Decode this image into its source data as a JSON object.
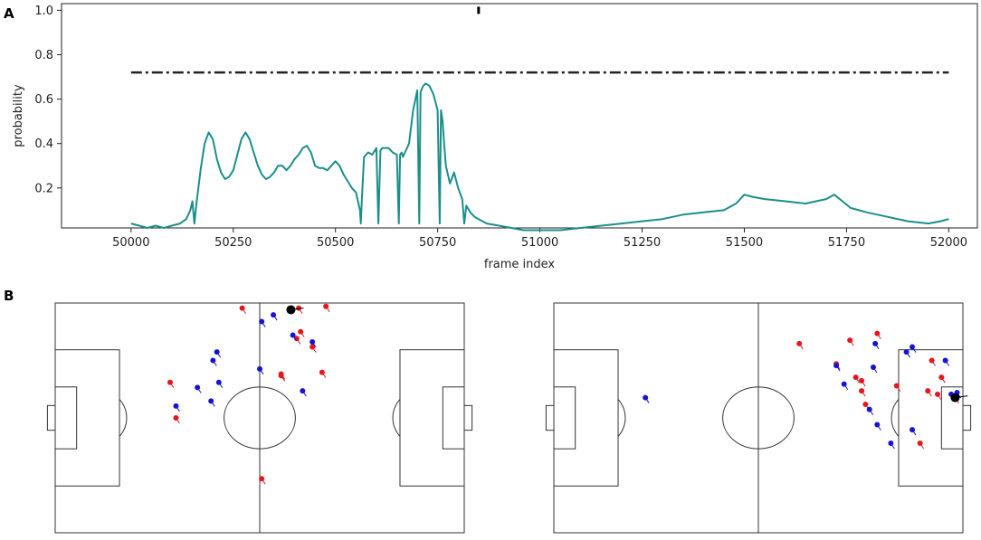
{
  "panel_a": {
    "letter": "A"
  },
  "panel_b": {
    "letter": "B"
  },
  "colors": {
    "probability_line": "#1a8f8a",
    "threshold_line": "#222222",
    "team_red": "#e8161a",
    "team_blue": "#1414d6",
    "ball": "#000000",
    "pitch_lines": "#333333"
  },
  "chart_data": [
    {
      "type": "line",
      "title": "",
      "xlabel": "frame index",
      "ylabel": "probability",
      "xlim": [
        49830,
        52070
      ],
      "ylim": [
        0.02,
        1.03
      ],
      "x_ticks": [
        50000,
        50250,
        50500,
        50750,
        51000,
        51250,
        51500,
        51750,
        52000
      ],
      "y_ticks": [
        0.2,
        0.4,
        0.6,
        0.8,
        1.0
      ],
      "y_tick_labels": [
        "0.2",
        "0.4",
        "0.6",
        "0.8",
        "1.0"
      ],
      "grid": false,
      "series": [
        {
          "style": "solid",
          "x": [
            50000,
            50020,
            50040,
            50060,
            50080,
            50100,
            50120,
            50135,
            50145,
            50150,
            50155,
            50160,
            50170,
            50180,
            50190,
            50200,
            50210,
            50220,
            50230,
            50240,
            50250,
            50260,
            50270,
            50280,
            50290,
            50300,
            50310,
            50320,
            50330,
            50340,
            50350,
            50360,
            50370,
            50380,
            50390,
            50400,
            50410,
            50420,
            50430,
            50440,
            50450,
            50460,
            50470,
            50480,
            50490,
            50500,
            50510,
            50520,
            50530,
            50540,
            50550,
            50560,
            50562,
            50565,
            50570,
            50580,
            50590,
            50600,
            50605,
            50610,
            50615,
            50620,
            50630,
            50640,
            50650,
            50655,
            50658,
            50662,
            50665,
            50670,
            50680,
            50690,
            50700,
            50705,
            50708,
            50712,
            50715,
            50720,
            50730,
            50740,
            50750,
            50755,
            50758,
            50762,
            50765,
            50770,
            50780,
            50790,
            50800,
            50810,
            50815,
            50820,
            50830,
            50840,
            50850,
            50870,
            50900,
            50930,
            50960,
            51000,
            51050,
            51100,
            51150,
            51200,
            51250,
            51300,
            51350,
            51400,
            51450,
            51480,
            51500,
            51520,
            51550,
            51600,
            51650,
            51700,
            51720,
            51740,
            51760,
            51800,
            51850,
            51900,
            51950,
            51980,
            52000
          ],
          "y": [
            0.04,
            0.03,
            0.02,
            0.03,
            0.02,
            0.03,
            0.04,
            0.06,
            0.1,
            0.14,
            0.04,
            0.13,
            0.28,
            0.4,
            0.45,
            0.42,
            0.33,
            0.27,
            0.24,
            0.25,
            0.28,
            0.35,
            0.42,
            0.45,
            0.42,
            0.36,
            0.3,
            0.26,
            0.24,
            0.25,
            0.27,
            0.3,
            0.3,
            0.28,
            0.3,
            0.33,
            0.35,
            0.38,
            0.39,
            0.36,
            0.3,
            0.29,
            0.29,
            0.28,
            0.3,
            0.32,
            0.3,
            0.26,
            0.23,
            0.2,
            0.18,
            0.1,
            0.04,
            0.17,
            0.34,
            0.36,
            0.35,
            0.38,
            0.04,
            0.37,
            0.38,
            0.38,
            0.38,
            0.36,
            0.35,
            0.04,
            0.35,
            0.36,
            0.34,
            0.36,
            0.4,
            0.55,
            0.64,
            0.04,
            0.63,
            0.65,
            0.66,
            0.67,
            0.66,
            0.62,
            0.55,
            0.04,
            0.55,
            0.5,
            0.42,
            0.3,
            0.22,
            0.27,
            0.2,
            0.15,
            0.04,
            0.12,
            0.09,
            0.07,
            0.06,
            0.04,
            0.03,
            0.02,
            0.01,
            0.01,
            0.01,
            0.02,
            0.03,
            0.04,
            0.05,
            0.06,
            0.08,
            0.09,
            0.1,
            0.13,
            0.17,
            0.16,
            0.15,
            0.14,
            0.13,
            0.15,
            0.17,
            0.14,
            0.11,
            0.09,
            0.07,
            0.05,
            0.04,
            0.05,
            0.06
          ]
        },
        {
          "style": "dash-dot",
          "x": [
            50000,
            52000
          ],
          "y": [
            0.72,
            0.72
          ]
        },
        {
          "style": "marker",
          "x": [
            50850
          ],
          "y": [
            1.0
          ]
        }
      ]
    },
    {
      "type": "scatter",
      "title": "",
      "xlim": [
        0,
        105
      ],
      "ylim": [
        0,
        68
      ],
      "series": [
        {
          "color": "red",
          "x": [
            48,
            29.5,
            31,
            62.5,
            63,
            62,
            69.5,
            58,
            66,
            68.5,
            58,
            53
          ],
          "y": [
            66.5,
            44.5,
            34,
            66.5,
            59.5,
            57.5,
            67,
            47,
            55,
            47.5,
            46.5,
            16
          ]
        },
        {
          "color": "blue",
          "x": [
            53,
            40.5,
            52.5,
            56,
            61,
            66,
            63.5,
            36.5,
            42,
            41.5,
            40,
            31
          ],
          "y": [
            62.5,
            51,
            48.5,
            64.5,
            58.5,
            56.5,
            42,
            43,
            44.5,
            53.5,
            39,
            37.5
          ]
        },
        {
          "color": "ball",
          "x": [
            60.5
          ],
          "y": [
            66
          ]
        }
      ]
    },
    {
      "type": "scatter",
      "title": "",
      "xlim": [
        0,
        105
      ],
      "ylim": [
        0,
        68
      ],
      "series": [
        {
          "color": "red",
          "x": [
            79,
            63,
            72.5,
            76,
            83,
            80,
            94,
            97,
            96,
            99.5,
            103,
            77.5,
            98.5,
            88,
            79
          ],
          "y": [
            42,
            56,
            50,
            57,
            59,
            38,
            26.5,
            51,
            42,
            46,
            40,
            46,
            41,
            43.5,
            45
          ]
        },
        {
          "color": "blue",
          "x": [
            92,
            72.5,
            74.5,
            82.5,
            82,
            90.5,
            86.5,
            103.5,
            92,
            100.5,
            102,
            83,
            81,
            23.5
          ],
          "y": [
            55,
            49.5,
            44,
            56,
            49,
            53.5,
            26.5,
            41.5,
            30.5,
            51,
            41,
            32,
            36.5,
            40
          ]
        },
        {
          "color": "ball",
          "x": [
            103
          ],
          "y": [
            40
          ]
        }
      ]
    }
  ]
}
